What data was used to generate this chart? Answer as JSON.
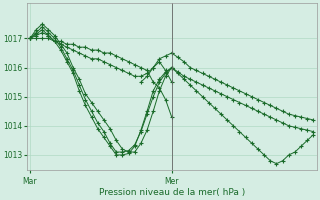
{
  "background_color": "#d5ede3",
  "grid_color": "#b0d9c4",
  "line_color": "#1a6b2a",
  "title": "Pression niveau de la mer( hPa )",
  "xlabel_mar": "Mar",
  "xlabel_mer": "Mer",
  "ylim": [
    1012.5,
    1018.2
  ],
  "yticks": [
    1013,
    1014,
    1015,
    1016,
    1017
  ],
  "series": [
    {
      "x": [
        0,
        1,
        2,
        3,
        4,
        5,
        6,
        7,
        8,
        9,
        10,
        11,
        12,
        13,
        14,
        15,
        16,
        17,
        18,
        19,
        20,
        21,
        22,
        23
      ],
      "y": [
        1017.0,
        1017.0,
        1017.0,
        1017.0,
        1016.9,
        1016.9,
        1016.8,
        1016.8,
        1016.7,
        1016.7,
        1016.6,
        1016.6,
        1016.5,
        1016.5,
        1016.4,
        1016.3,
        1016.2,
        1016.1,
        1016.0,
        1015.9,
        1015.5,
        1015.3,
        1014.9,
        1014.3
      ]
    },
    {
      "x": [
        0,
        1,
        2,
        3,
        4,
        5,
        6,
        7,
        8,
        9,
        10,
        11,
        12,
        13,
        14,
        15,
        16,
        17,
        18,
        19,
        20,
        21,
        22,
        23
      ],
      "y": [
        1017.0,
        1017.1,
        1017.2,
        1017.1,
        1016.9,
        1016.8,
        1016.7,
        1016.6,
        1016.5,
        1016.4,
        1016.3,
        1016.3,
        1016.2,
        1016.1,
        1016.0,
        1015.9,
        1015.8,
        1015.7,
        1015.7,
        1015.8,
        1016.0,
        1016.2,
        1015.9,
        1015.5
      ]
    },
    {
      "x": [
        0,
        1,
        2,
        3,
        4,
        5,
        6,
        7,
        8,
        9,
        10,
        11,
        12,
        13,
        14,
        15,
        16,
        17,
        18,
        19,
        20,
        21,
        22,
        23
      ],
      "y": [
        1017.0,
        1017.3,
        1017.5,
        1017.3,
        1017.1,
        1016.8,
        1016.5,
        1016.0,
        1015.6,
        1015.1,
        1014.8,
        1014.5,
        1014.2,
        1013.9,
        1013.5,
        1013.2,
        1013.1,
        1013.1,
        1013.4,
        1013.85,
        1014.5,
        1015.2,
        1015.7,
        1016.0
      ]
    },
    {
      "x": [
        0,
        1,
        2,
        3,
        4,
        5,
        6,
        7,
        8,
        9,
        10,
        11,
        12,
        13,
        14,
        15,
        16,
        17,
        18,
        19,
        20,
        21,
        22,
        23
      ],
      "y": [
        1017.0,
        1017.2,
        1017.4,
        1017.2,
        1017.0,
        1016.7,
        1016.3,
        1015.9,
        1015.4,
        1014.9,
        1014.5,
        1014.1,
        1013.8,
        1013.4,
        1013.1,
        1013.1,
        1013.15,
        1013.35,
        1013.8,
        1014.4,
        1015.0,
        1015.5,
        1015.8,
        1016.0
      ]
    },
    {
      "x": [
        0,
        1,
        2,
        3,
        4,
        5,
        6,
        7,
        8,
        9,
        10,
        11,
        12,
        13,
        14,
        15,
        16,
        17,
        18,
        19,
        20,
        21,
        22,
        23
      ],
      "y": [
        1017.0,
        1017.15,
        1017.3,
        1017.1,
        1016.9,
        1016.6,
        1016.2,
        1015.8,
        1015.2,
        1014.7,
        1014.3,
        1013.9,
        1013.6,
        1013.3,
        1013.0,
        1013.0,
        1013.05,
        1013.3,
        1013.85,
        1014.5,
        1015.2,
        1015.6,
        1015.85,
        1016.0
      ]
    },
    {
      "x": [
        18,
        19,
        20,
        21,
        22,
        23
      ],
      "y": [
        1015.5,
        1015.7,
        1016.0,
        1016.3,
        1016.4,
        1016.5
      ]
    }
  ],
  "post_mer_series": [
    {
      "x": [
        23,
        24,
        25,
        26,
        27,
        28,
        29,
        30,
        31,
        32,
        33,
        34,
        35,
        36,
        37,
        38,
        39,
        40,
        41,
        42,
        43,
        44,
        45,
        46
      ],
      "y": [
        1016.5,
        1016.35,
        1016.2,
        1016.0,
        1015.9,
        1015.8,
        1015.7,
        1015.6,
        1015.5,
        1015.4,
        1015.3,
        1015.2,
        1015.1,
        1015.0,
        1014.9,
        1014.8,
        1014.7,
        1014.6,
        1014.5,
        1014.4,
        1014.35,
        1014.3,
        1014.25,
        1014.2
      ]
    },
    {
      "x": [
        23,
        24,
        25,
        26,
        27,
        28,
        29,
        30,
        31,
        32,
        33,
        34,
        35,
        36,
        37,
        38,
        39,
        40,
        41,
        42,
        43,
        44,
        45,
        46
      ],
      "y": [
        1016.0,
        1015.85,
        1015.7,
        1015.6,
        1015.5,
        1015.4,
        1015.3,
        1015.2,
        1015.1,
        1015.0,
        1014.9,
        1014.8,
        1014.7,
        1014.6,
        1014.5,
        1014.4,
        1014.3,
        1014.2,
        1014.1,
        1014.0,
        1013.95,
        1013.9,
        1013.85,
        1013.8
      ]
    },
    {
      "x": [
        23,
        24,
        25,
        26,
        27,
        28,
        29,
        30,
        31,
        32,
        33,
        34,
        35,
        36,
        37,
        38,
        39,
        40,
        41,
        42,
        43,
        44,
        45,
        46
      ],
      "y": [
        1016.0,
        1015.8,
        1015.6,
        1015.4,
        1015.2,
        1015.0,
        1014.8,
        1014.6,
        1014.4,
        1014.2,
        1014.0,
        1013.8,
        1013.6,
        1013.4,
        1013.2,
        1013.0,
        1012.8,
        1012.7,
        1012.8,
        1013.0,
        1013.1,
        1013.3,
        1013.5,
        1013.7
      ]
    }
  ],
  "ver_line_x": 23,
  "mar_x": 0,
  "mer_x": 23,
  "xlim": [
    -0.5,
    46.5
  ]
}
